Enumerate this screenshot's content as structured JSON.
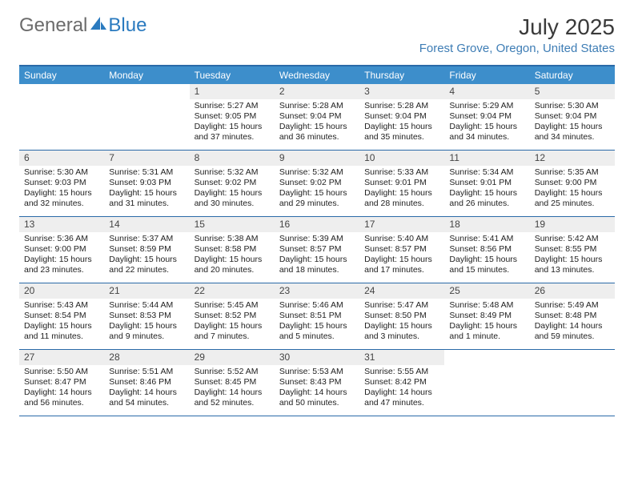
{
  "logo": {
    "part1": "General",
    "part2": "Blue"
  },
  "header": {
    "month_title": "July 2025",
    "location": "Forest Grove, Oregon, United States"
  },
  "colors": {
    "header_bg": "#3d8ecb",
    "border": "#2a6aa8",
    "daynum_bg": "#eeeeee",
    "location": "#3e7db5",
    "logo_gray": "#6b6b6b",
    "logo_blue": "#2a7abf"
  },
  "weekdays": [
    "Sunday",
    "Monday",
    "Tuesday",
    "Wednesday",
    "Thursday",
    "Friday",
    "Saturday"
  ],
  "weeks": [
    [
      {
        "blank": true
      },
      {
        "blank": true
      },
      {
        "n": "1",
        "sunrise": "Sunrise: 5:27 AM",
        "sunset": "Sunset: 9:05 PM",
        "dl1": "Daylight: 15 hours",
        "dl2": "and 37 minutes."
      },
      {
        "n": "2",
        "sunrise": "Sunrise: 5:28 AM",
        "sunset": "Sunset: 9:04 PM",
        "dl1": "Daylight: 15 hours",
        "dl2": "and 36 minutes."
      },
      {
        "n": "3",
        "sunrise": "Sunrise: 5:28 AM",
        "sunset": "Sunset: 9:04 PM",
        "dl1": "Daylight: 15 hours",
        "dl2": "and 35 minutes."
      },
      {
        "n": "4",
        "sunrise": "Sunrise: 5:29 AM",
        "sunset": "Sunset: 9:04 PM",
        "dl1": "Daylight: 15 hours",
        "dl2": "and 34 minutes."
      },
      {
        "n": "5",
        "sunrise": "Sunrise: 5:30 AM",
        "sunset": "Sunset: 9:04 PM",
        "dl1": "Daylight: 15 hours",
        "dl2": "and 34 minutes."
      }
    ],
    [
      {
        "n": "6",
        "sunrise": "Sunrise: 5:30 AM",
        "sunset": "Sunset: 9:03 PM",
        "dl1": "Daylight: 15 hours",
        "dl2": "and 32 minutes."
      },
      {
        "n": "7",
        "sunrise": "Sunrise: 5:31 AM",
        "sunset": "Sunset: 9:03 PM",
        "dl1": "Daylight: 15 hours",
        "dl2": "and 31 minutes."
      },
      {
        "n": "8",
        "sunrise": "Sunrise: 5:32 AM",
        "sunset": "Sunset: 9:02 PM",
        "dl1": "Daylight: 15 hours",
        "dl2": "and 30 minutes."
      },
      {
        "n": "9",
        "sunrise": "Sunrise: 5:32 AM",
        "sunset": "Sunset: 9:02 PM",
        "dl1": "Daylight: 15 hours",
        "dl2": "and 29 minutes."
      },
      {
        "n": "10",
        "sunrise": "Sunrise: 5:33 AM",
        "sunset": "Sunset: 9:01 PM",
        "dl1": "Daylight: 15 hours",
        "dl2": "and 28 minutes."
      },
      {
        "n": "11",
        "sunrise": "Sunrise: 5:34 AM",
        "sunset": "Sunset: 9:01 PM",
        "dl1": "Daylight: 15 hours",
        "dl2": "and 26 minutes."
      },
      {
        "n": "12",
        "sunrise": "Sunrise: 5:35 AM",
        "sunset": "Sunset: 9:00 PM",
        "dl1": "Daylight: 15 hours",
        "dl2": "and 25 minutes."
      }
    ],
    [
      {
        "n": "13",
        "sunrise": "Sunrise: 5:36 AM",
        "sunset": "Sunset: 9:00 PM",
        "dl1": "Daylight: 15 hours",
        "dl2": "and 23 minutes."
      },
      {
        "n": "14",
        "sunrise": "Sunrise: 5:37 AM",
        "sunset": "Sunset: 8:59 PM",
        "dl1": "Daylight: 15 hours",
        "dl2": "and 22 minutes."
      },
      {
        "n": "15",
        "sunrise": "Sunrise: 5:38 AM",
        "sunset": "Sunset: 8:58 PM",
        "dl1": "Daylight: 15 hours",
        "dl2": "and 20 minutes."
      },
      {
        "n": "16",
        "sunrise": "Sunrise: 5:39 AM",
        "sunset": "Sunset: 8:57 PM",
        "dl1": "Daylight: 15 hours",
        "dl2": "and 18 minutes."
      },
      {
        "n": "17",
        "sunrise": "Sunrise: 5:40 AM",
        "sunset": "Sunset: 8:57 PM",
        "dl1": "Daylight: 15 hours",
        "dl2": "and 17 minutes."
      },
      {
        "n": "18",
        "sunrise": "Sunrise: 5:41 AM",
        "sunset": "Sunset: 8:56 PM",
        "dl1": "Daylight: 15 hours",
        "dl2": "and 15 minutes."
      },
      {
        "n": "19",
        "sunrise": "Sunrise: 5:42 AM",
        "sunset": "Sunset: 8:55 PM",
        "dl1": "Daylight: 15 hours",
        "dl2": "and 13 minutes."
      }
    ],
    [
      {
        "n": "20",
        "sunrise": "Sunrise: 5:43 AM",
        "sunset": "Sunset: 8:54 PM",
        "dl1": "Daylight: 15 hours",
        "dl2": "and 11 minutes."
      },
      {
        "n": "21",
        "sunrise": "Sunrise: 5:44 AM",
        "sunset": "Sunset: 8:53 PM",
        "dl1": "Daylight: 15 hours",
        "dl2": "and 9 minutes."
      },
      {
        "n": "22",
        "sunrise": "Sunrise: 5:45 AM",
        "sunset": "Sunset: 8:52 PM",
        "dl1": "Daylight: 15 hours",
        "dl2": "and 7 minutes."
      },
      {
        "n": "23",
        "sunrise": "Sunrise: 5:46 AM",
        "sunset": "Sunset: 8:51 PM",
        "dl1": "Daylight: 15 hours",
        "dl2": "and 5 minutes."
      },
      {
        "n": "24",
        "sunrise": "Sunrise: 5:47 AM",
        "sunset": "Sunset: 8:50 PM",
        "dl1": "Daylight: 15 hours",
        "dl2": "and 3 minutes."
      },
      {
        "n": "25",
        "sunrise": "Sunrise: 5:48 AM",
        "sunset": "Sunset: 8:49 PM",
        "dl1": "Daylight: 15 hours",
        "dl2": "and 1 minute."
      },
      {
        "n": "26",
        "sunrise": "Sunrise: 5:49 AM",
        "sunset": "Sunset: 8:48 PM",
        "dl1": "Daylight: 14 hours",
        "dl2": "and 59 minutes."
      }
    ],
    [
      {
        "n": "27",
        "sunrise": "Sunrise: 5:50 AM",
        "sunset": "Sunset: 8:47 PM",
        "dl1": "Daylight: 14 hours",
        "dl2": "and 56 minutes."
      },
      {
        "n": "28",
        "sunrise": "Sunrise: 5:51 AM",
        "sunset": "Sunset: 8:46 PM",
        "dl1": "Daylight: 14 hours",
        "dl2": "and 54 minutes."
      },
      {
        "n": "29",
        "sunrise": "Sunrise: 5:52 AM",
        "sunset": "Sunset: 8:45 PM",
        "dl1": "Daylight: 14 hours",
        "dl2": "and 52 minutes."
      },
      {
        "n": "30",
        "sunrise": "Sunrise: 5:53 AM",
        "sunset": "Sunset: 8:43 PM",
        "dl1": "Daylight: 14 hours",
        "dl2": "and 50 minutes."
      },
      {
        "n": "31",
        "sunrise": "Sunrise: 5:55 AM",
        "sunset": "Sunset: 8:42 PM",
        "dl1": "Daylight: 14 hours",
        "dl2": "and 47 minutes."
      },
      {
        "blank": true
      },
      {
        "blank": true
      }
    ]
  ]
}
